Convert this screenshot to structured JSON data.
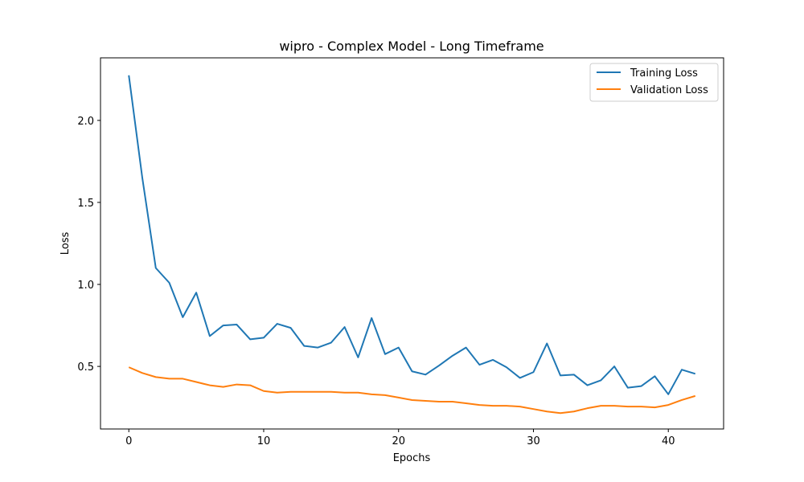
{
  "chart_data": {
    "type": "line",
    "title": "wipro - Complex Model - Long Timeframe",
    "xlabel": "Epochs",
    "ylabel": "Loss",
    "xlim": [
      -2.1,
      44.1
    ],
    "ylim": [
      0.1185,
      2.3815
    ],
    "xticks": [
      0,
      10,
      20,
      30,
      40
    ],
    "yticks": [
      0.5,
      1.0,
      1.5,
      2.0
    ],
    "grid": false,
    "legend_position": "top-right",
    "x": [
      0,
      1,
      2,
      3,
      4,
      5,
      6,
      7,
      8,
      9,
      10,
      11,
      12,
      13,
      14,
      15,
      16,
      17,
      18,
      19,
      20,
      21,
      22,
      23,
      24,
      25,
      26,
      27,
      28,
      29,
      30,
      31,
      32,
      33,
      34,
      35,
      36,
      37,
      38,
      39,
      40,
      41,
      42
    ],
    "series": [
      {
        "name": "Training Loss",
        "color": "#1f77b4",
        "values": [
          2.275,
          1.65,
          1.1,
          1.01,
          0.8,
          0.95,
          0.685,
          0.75,
          0.755,
          0.665,
          0.675,
          0.76,
          0.735,
          0.625,
          0.615,
          0.645,
          0.74,
          0.555,
          0.795,
          0.575,
          0.615,
          0.47,
          0.45,
          0.505,
          0.565,
          0.615,
          0.51,
          0.54,
          0.495,
          0.43,
          0.465,
          0.64,
          0.445,
          0.45,
          0.385,
          0.415,
          0.5,
          0.37,
          0.38,
          0.44,
          0.33,
          0.48,
          0.455
        ]
      },
      {
        "name": "Validation Loss",
        "color": "#ff7f0e",
        "values": [
          0.495,
          0.46,
          0.435,
          0.425,
          0.425,
          0.405,
          0.385,
          0.375,
          0.39,
          0.385,
          0.35,
          0.34,
          0.345,
          0.345,
          0.345,
          0.345,
          0.34,
          0.34,
          0.33,
          0.325,
          0.31,
          0.295,
          0.29,
          0.285,
          0.285,
          0.275,
          0.265,
          0.26,
          0.26,
          0.255,
          0.24,
          0.225,
          0.215,
          0.225,
          0.245,
          0.26,
          0.26,
          0.255,
          0.255,
          0.25,
          0.265,
          0.295,
          0.32
        ]
      }
    ]
  }
}
